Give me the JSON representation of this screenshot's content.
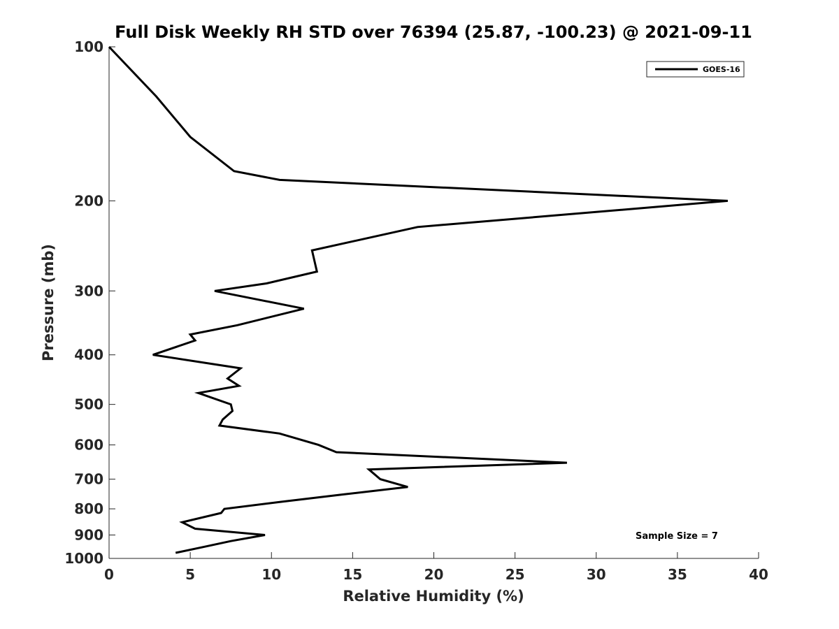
{
  "chart_data": {
    "type": "line",
    "title": "Full Disk Weekly RH STD over 76394 (25.87, -100.23) @ 2021-09-11",
    "xlabel": "Relative Humidity (%)",
    "ylabel": "Pressure (mb)",
    "xlim": [
      0,
      40
    ],
    "ylim": [
      100,
      1000
    ],
    "y_scale": "log",
    "y_reversed": true,
    "x_ticks": [
      0,
      5,
      10,
      15,
      20,
      25,
      30,
      35,
      40
    ],
    "y_ticks": [
      100,
      200,
      300,
      400,
      500,
      600,
      700,
      800,
      900,
      1000
    ],
    "grid": false,
    "legend_position": "top-right",
    "annotation": "Sample Size = 7",
    "series": [
      {
        "name": "GOES-16",
        "color": "#000000",
        "points": [
          [
            0,
            100
          ],
          [
            2.9,
            125
          ],
          [
            5,
            150
          ],
          [
            7.7,
            175
          ],
          [
            10.5,
            182
          ],
          [
            38.1,
            200
          ],
          [
            19,
            225
          ],
          [
            12.5,
            250
          ],
          [
            12.8,
            275
          ],
          [
            9.7,
            290
          ],
          [
            6.5,
            300
          ],
          [
            12,
            325
          ],
          [
            7.9,
            350
          ],
          [
            5,
            365
          ],
          [
            5.3,
            375
          ],
          [
            2.7,
            400
          ],
          [
            8.1,
            425
          ],
          [
            7.3,
            445
          ],
          [
            8,
            460
          ],
          [
            5.5,
            475
          ],
          [
            7.5,
            500
          ],
          [
            7.6,
            515
          ],
          [
            7,
            535
          ],
          [
            6.8,
            550
          ],
          [
            10.5,
            570
          ],
          [
            12.9,
            600
          ],
          [
            14,
            620
          ],
          [
            28.2,
            650
          ],
          [
            16,
            670
          ],
          [
            16.7,
            700
          ],
          [
            18.4,
            725
          ],
          [
            14.4,
            750
          ],
          [
            10.6,
            775
          ],
          [
            7.1,
            800
          ],
          [
            6.9,
            815
          ],
          [
            4.5,
            850
          ],
          [
            5.3,
            875
          ],
          [
            9.6,
            900
          ],
          [
            7.5,
            925
          ],
          [
            5.8,
            950
          ],
          [
            4.1,
            975
          ]
        ]
      }
    ]
  }
}
